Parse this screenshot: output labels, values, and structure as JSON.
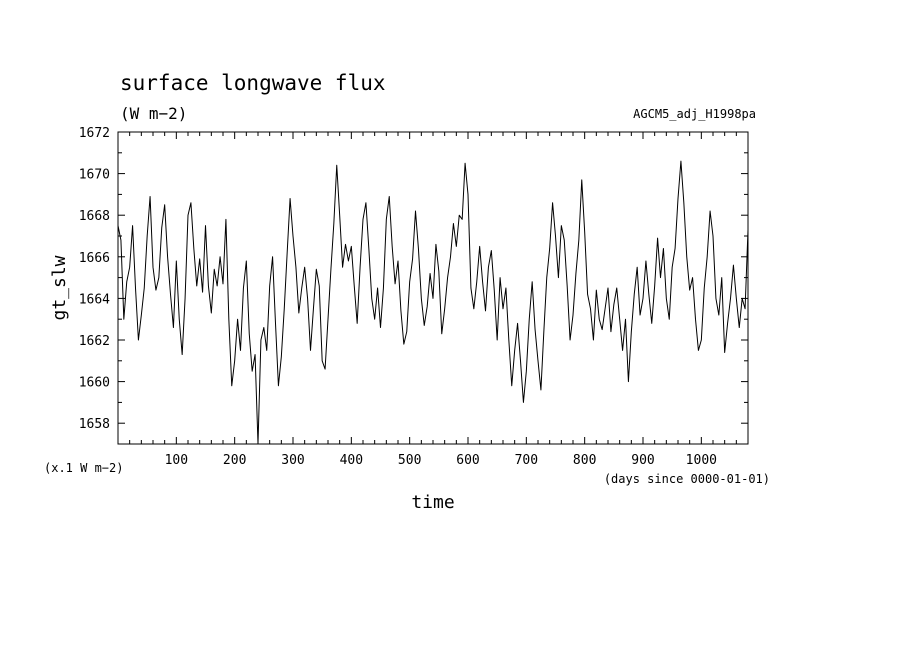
{
  "chart_data": {
    "type": "line",
    "title": "surface longwave flux",
    "units": "(W m−2)",
    "dataset": "AGCM5_adj_H1998pa",
    "xlabel": "time",
    "x_units": "(days since 0000-01-01)",
    "ylabel": "gt_slw",
    "y_scale_note": "(x.1 W m−2)",
    "xlim": [
      0,
      1080
    ],
    "ylim": [
      1657,
      1672
    ],
    "x_ticks": [
      100,
      200,
      300,
      400,
      500,
      600,
      700,
      800,
      900,
      1000
    ],
    "y_ticks": [
      1658,
      1660,
      1662,
      1664,
      1666,
      1668,
      1670,
      1672
    ],
    "grid": false,
    "legend": "none",
    "line_color": "#000000",
    "series": [
      {
        "x": [
          0,
          5,
          10,
          15,
          20,
          25,
          30,
          35,
          40,
          45,
          50,
          55,
          60,
          65,
          70,
          75,
          80,
          85,
          90,
          95,
          100,
          105,
          110,
          115,
          120,
          125,
          130,
          135,
          140,
          145,
          150,
          155,
          160,
          165,
          170,
          175,
          180,
          185,
          190,
          195,
          200,
          205,
          210,
          215,
          220,
          225,
          230,
          235,
          240,
          245,
          250,
          255,
          260,
          265,
          270,
          275,
          280,
          285,
          290,
          295,
          300,
          305,
          310,
          315,
          320,
          325,
          330,
          335,
          340,
          345,
          350,
          355,
          360,
          365,
          370,
          375,
          380,
          385,
          390,
          395,
          400,
          405,
          410,
          415,
          420,
          425,
          430,
          435,
          440,
          445,
          450,
          455,
          460,
          465,
          470,
          475,
          480,
          485,
          490,
          495,
          500,
          505,
          510,
          515,
          520,
          525,
          530,
          535,
          540,
          545,
          550,
          555,
          560,
          565,
          570,
          575,
          580,
          585,
          590,
          595,
          600,
          605,
          610,
          615,
          620,
          625,
          630,
          635,
          640,
          645,
          650,
          655,
          660,
          665,
          670,
          675,
          680,
          685,
          690,
          695,
          700,
          705,
          710,
          715,
          720,
          725,
          730,
          735,
          740,
          745,
          750,
          755,
          760,
          765,
          770,
          775,
          780,
          785,
          790,
          795,
          800,
          805,
          810,
          815,
          820,
          825,
          830,
          835,
          840,
          845,
          850,
          855,
          860,
          865,
          870,
          875,
          880,
          885,
          890,
          895,
          900,
          905,
          910,
          915,
          920,
          925,
          930,
          935,
          940,
          945,
          950,
          955,
          960,
          965,
          970,
          975,
          980,
          985,
          990,
          995,
          1000,
          1005,
          1010,
          1015,
          1020,
          1025,
          1030,
          1035,
          1040,
          1045,
          1050,
          1055,
          1060,
          1065,
          1070,
          1075,
          1080
        ],
        "y": [
          1667.5,
          1666.8,
          1663.0,
          1664.8,
          1665.5,
          1667.5,
          1664.5,
          1662.0,
          1663.2,
          1664.5,
          1667.0,
          1668.9,
          1665.5,
          1664.4,
          1665.0,
          1667.4,
          1668.5,
          1666.0,
          1664.2,
          1662.6,
          1665.8,
          1663.0,
          1661.3,
          1664.0,
          1668.0,
          1668.6,
          1666.4,
          1664.6,
          1665.9,
          1664.3,
          1667.5,
          1664.6,
          1663.3,
          1665.4,
          1664.6,
          1666.0,
          1664.7,
          1667.8,
          1663.0,
          1659.8,
          1661.0,
          1663.0,
          1661.5,
          1664.5,
          1665.8,
          1662.3,
          1660.5,
          1661.3,
          1657.0,
          1662.0,
          1662.6,
          1661.5,
          1664.6,
          1666.0,
          1662.8,
          1659.8,
          1661.2,
          1663.5,
          1666.2,
          1668.8,
          1667.0,
          1665.5,
          1663.3,
          1664.5,
          1665.5,
          1664.0,
          1661.5,
          1663.5,
          1665.4,
          1664.6,
          1661.0,
          1660.6,
          1663.0,
          1665.4,
          1667.6,
          1670.4,
          1668.0,
          1665.5,
          1666.6,
          1665.8,
          1666.5,
          1664.6,
          1662.8,
          1665.5,
          1667.8,
          1668.6,
          1666.4,
          1664.0,
          1663.0,
          1664.5,
          1662.6,
          1664.5,
          1667.8,
          1668.9,
          1666.5,
          1664.7,
          1665.8,
          1663.4,
          1661.8,
          1662.4,
          1664.8,
          1665.9,
          1668.2,
          1666.4,
          1664.0,
          1662.7,
          1663.6,
          1665.2,
          1664.0,
          1666.6,
          1665.3,
          1662.3,
          1663.5,
          1665.0,
          1666.0,
          1667.6,
          1666.5,
          1668.0,
          1667.8,
          1670.5,
          1669.0,
          1664.5,
          1663.5,
          1664.8,
          1666.5,
          1664.8,
          1663.4,
          1665.5,
          1666.3,
          1664.4,
          1662.0,
          1665.0,
          1663.5,
          1664.5,
          1662.0,
          1659.8,
          1661.5,
          1662.8,
          1661.0,
          1659.0,
          1660.5,
          1663.0,
          1664.8,
          1662.5,
          1661.0,
          1659.6,
          1662.4,
          1665.0,
          1666.4,
          1668.6,
          1667.0,
          1665.0,
          1667.5,
          1666.8,
          1664.6,
          1662.0,
          1663.2,
          1665.2,
          1666.8,
          1669.7,
          1667.2,
          1664.2,
          1663.5,
          1662.0,
          1664.4,
          1663.0,
          1662.5,
          1663.5,
          1664.5,
          1662.4,
          1663.7,
          1664.5,
          1663.0,
          1661.5,
          1663.0,
          1660.0,
          1662.4,
          1664.2,
          1665.5,
          1663.2,
          1664.0,
          1665.8,
          1664.2,
          1662.8,
          1664.6,
          1666.9,
          1665.0,
          1666.4,
          1664.0,
          1663.0,
          1665.5,
          1666.4,
          1668.8,
          1670.6,
          1668.6,
          1666.0,
          1664.4,
          1665.0,
          1663.0,
          1661.5,
          1662.0,
          1664.5,
          1666.0,
          1668.2,
          1667.0,
          1664.0,
          1663.2,
          1665.0,
          1661.4,
          1662.8,
          1664.0,
          1665.6,
          1664.0,
          1662.6,
          1664.0,
          1663.5,
          1667.3
        ]
      }
    ]
  }
}
